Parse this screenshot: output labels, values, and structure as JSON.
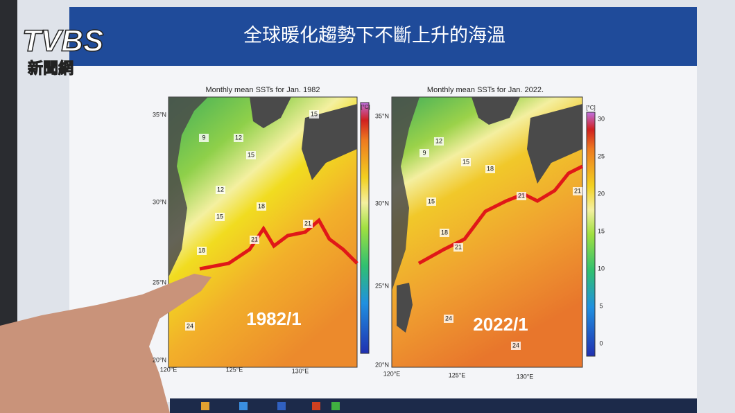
{
  "logo": {
    "brand": "TVBS",
    "subtitle": "新聞網"
  },
  "slide": {
    "title": "全球暖化趨勢下不斷上升的海溫"
  },
  "maps": [
    {
      "title": "Monthly mean SSTs for Jan. 1982",
      "year_label": "1982/1",
      "lat_labels": [
        "35°N",
        "30°N",
        "25°N",
        "20°N"
      ],
      "lon_labels": [
        "120°E",
        "125°E",
        "130°E"
      ],
      "contour_labels": [
        "15",
        "9",
        "12",
        "15",
        "12",
        "18",
        "15",
        "18",
        "21",
        "21",
        "24"
      ],
      "colorbar_unit": "[°C]"
    },
    {
      "title": "Monthly mean SSTs for Jan. 2022.",
      "year_label": "2022/1",
      "lat_labels": [
        "35°N",
        "30°N",
        "25°N",
        "20°N"
      ],
      "lon_labels": [
        "120°E",
        "125°E",
        "130°E"
      ],
      "contour_labels": [
        "12",
        "9",
        "15",
        "18",
        "15",
        "18",
        "21",
        "21",
        "21",
        "24",
        "24"
      ],
      "colorbar_unit": "[°C]",
      "colorbar_ticks": [
        "30",
        "25",
        "20",
        "15",
        "10",
        "5",
        "0"
      ]
    }
  ]
}
